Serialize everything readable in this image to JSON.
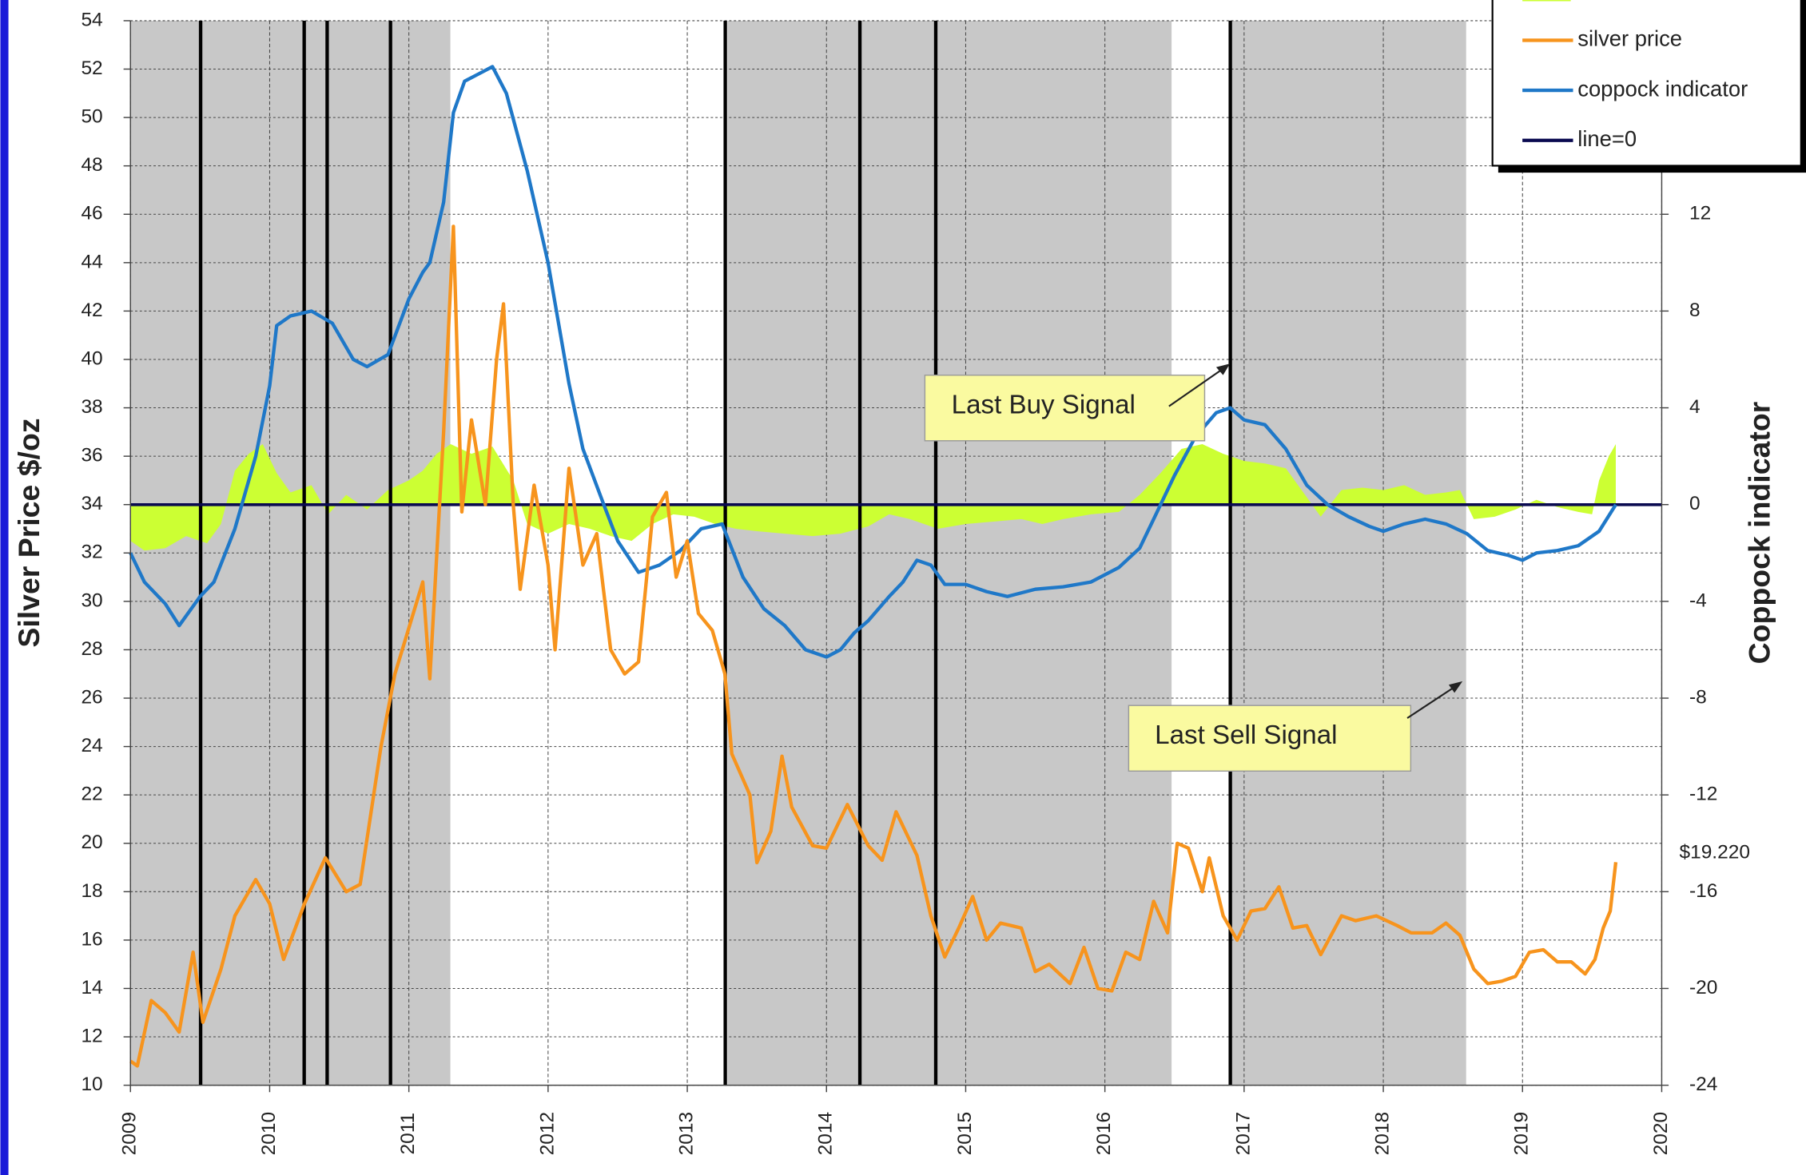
{
  "chart_data": {
    "type": "line",
    "ylabel": "Silver Price $/oz",
    "y2label": "Coppock indicator",
    "xlim": [
      2009,
      2020
    ],
    "xticks": [
      2009,
      2010,
      2011,
      2012,
      2013,
      2014,
      2015,
      2016,
      2017,
      2018,
      2019,
      2020
    ],
    "ylim": [
      10,
      54
    ],
    "yticks": [
      10,
      12,
      14,
      16,
      18,
      20,
      22,
      24,
      26,
      28,
      30,
      32,
      34,
      36,
      38,
      40,
      42,
      44,
      46,
      48,
      50,
      52,
      54
    ],
    "y2lim": [
      -24,
      20
    ],
    "y2ticks": [
      -24,
      -20,
      -16,
      -12,
      -8,
      -4,
      0,
      4,
      8,
      12
    ],
    "grid": true,
    "legend": "top-right",
    "shade_color": "#c8c8c8",
    "shaded_ranges": [
      [
        2009.0,
        2011.298
      ],
      [
        2013.289,
        2016.479
      ],
      [
        2016.901,
        2018.595
      ]
    ],
    "signal_lines": [
      2009.504,
      2010.248,
      2010.413,
      2010.868,
      2013.273,
      2014.24,
      2014.785,
      2016.901
    ],
    "annotations": [
      "Last Buy Signal",
      "Last Sell Signal"
    ],
    "series": [
      {
        "type": "area",
        "color": "#ccff33",
        "axis": "y2",
        "x": [
          2009.0,
          2009.1,
          2009.25,
          2009.4,
          2009.55,
          2009.65,
          2009.75,
          2009.85,
          2009.95,
          2010.05,
          2010.15,
          2010.3,
          2010.42,
          2010.55,
          2010.7,
          2010.85,
          2011.0,
          2011.1,
          2011.2,
          2011.3,
          2011.45,
          2011.6,
          2011.75,
          2011.85,
          2012.0,
          2012.15,
          2012.3,
          2012.45,
          2012.6,
          2012.75,
          2012.9,
          2013.05,
          2013.2,
          2013.35,
          2013.5,
          2013.7,
          2013.9,
          2014.1,
          2014.3,
          2014.45,
          2014.6,
          2014.8,
          2015.0,
          2015.2,
          2015.4,
          2015.55,
          2015.7,
          2015.9,
          2016.1,
          2016.25,
          2016.4,
          2016.55,
          2016.7,
          2016.85,
          2017.0,
          2017.15,
          2017.3,
          2017.45,
          2017.55,
          2017.7,
          2017.85,
          2018.0,
          2018.15,
          2018.3,
          2018.45,
          2018.55,
          2018.65,
          2018.8,
          2018.95,
          2019.1,
          2019.25,
          2019.4,
          2019.5,
          2019.55,
          2019.62,
          2019.67
        ],
        "values": [
          -1.5,
          -1.9,
          -1.8,
          -1.3,
          -1.6,
          -0.8,
          1.4,
          2.1,
          2.5,
          1.3,
          0.5,
          0.8,
          -0.4,
          0.4,
          -0.2,
          0.6,
          1.0,
          1.4,
          2.1,
          2.5,
          2.1,
          2.4,
          1.0,
          -0.8,
          -1.2,
          -0.8,
          -1.0,
          -1.3,
          -1.5,
          -0.8,
          -0.4,
          -0.5,
          -0.8,
          -1.0,
          -1.1,
          -1.2,
          -1.3,
          -1.2,
          -0.9,
          -0.4,
          -0.6,
          -1.0,
          -0.8,
          -0.7,
          -0.6,
          -0.8,
          -0.6,
          -0.4,
          -0.3,
          0.4,
          1.3,
          2.3,
          2.5,
          2.1,
          1.8,
          1.7,
          1.5,
          0.3,
          -0.5,
          0.6,
          0.7,
          0.6,
          0.8,
          0.4,
          0.5,
          0.6,
          -0.6,
          -0.5,
          -0.2,
          0.2,
          -0.1,
          -0.3,
          -0.4,
          1.0,
          2.0,
          2.5
        ]
      },
      {
        "name": "silver price",
        "color": "#f7941d",
        "axis": "y",
        "x": [
          2009.0,
          2009.05,
          2009.15,
          2009.25,
          2009.35,
          2009.45,
          2009.52,
          2009.65,
          2009.75,
          2009.9,
          2010.0,
          2010.1,
          2010.25,
          2010.4,
          2010.55,
          2010.65,
          2010.8,
          2010.9,
          2011.0,
          2011.1,
          2011.15,
          2011.25,
          2011.32,
          2011.38,
          2011.45,
          2011.55,
          2011.63,
          2011.68,
          2011.75,
          2011.8,
          2011.9,
          2012.0,
          2012.05,
          2012.15,
          2012.25,
          2012.35,
          2012.45,
          2012.55,
          2012.65,
          2012.75,
          2012.85,
          2012.92,
          2013.0,
          2013.08,
          2013.18,
          2013.27,
          2013.32,
          2013.45,
          2013.5,
          2013.6,
          2013.68,
          2013.75,
          2013.9,
          2014.0,
          2014.15,
          2014.3,
          2014.4,
          2014.5,
          2014.65,
          2014.75,
          2014.85,
          2014.95,
          2015.05,
          2015.15,
          2015.25,
          2015.4,
          2015.5,
          2015.6,
          2015.75,
          2015.85,
          2015.95,
          2016.05,
          2016.15,
          2016.25,
          2016.35,
          2016.45,
          2016.52,
          2016.6,
          2016.7,
          2016.75,
          2016.85,
          2016.95,
          2017.05,
          2017.15,
          2017.25,
          2017.35,
          2017.45,
          2017.55,
          2017.7,
          2017.8,
          2017.95,
          2018.1,
          2018.2,
          2018.35,
          2018.45,
          2018.55,
          2018.65,
          2018.75,
          2018.85,
          2018.95,
          2019.05,
          2019.15,
          2019.25,
          2019.35,
          2019.45,
          2019.52,
          2019.58,
          2019.63,
          2019.67
        ],
        "values": [
          11.0,
          10.8,
          13.5,
          13.0,
          12.2,
          15.5,
          12.6,
          14.8,
          17.0,
          18.5,
          17.5,
          15.2,
          17.5,
          19.4,
          18.0,
          18.3,
          24.0,
          27.0,
          28.9,
          30.8,
          26.8,
          37.0,
          45.5,
          33.7,
          37.5,
          34.0,
          40.0,
          42.3,
          34.0,
          30.5,
          34.8,
          31.5,
          28.0,
          35.5,
          31.5,
          32.8,
          28.0,
          27.0,
          27.5,
          33.5,
          34.5,
          31.0,
          32.5,
          29.5,
          28.8,
          27.0,
          23.7,
          22.0,
          19.2,
          20.5,
          23.6,
          21.5,
          19.9,
          19.8,
          21.6,
          19.9,
          19.3,
          21.3,
          19.5,
          17.0,
          15.3,
          16.5,
          17.8,
          16.0,
          16.7,
          16.5,
          14.7,
          15.0,
          14.2,
          15.7,
          14.0,
          13.9,
          15.5,
          15.2,
          17.6,
          16.3,
          20.0,
          19.8,
          18.0,
          19.4,
          17.0,
          16.0,
          17.2,
          17.3,
          18.2,
          16.5,
          16.6,
          15.4,
          17.0,
          16.8,
          17.0,
          16.6,
          16.3,
          16.3,
          16.7,
          16.2,
          14.8,
          14.2,
          14.3,
          14.5,
          15.5,
          15.6,
          15.1,
          15.1,
          14.6,
          15.2,
          16.5,
          17.2,
          19.22
        ],
        "value_labels": [
          null,
          null,
          null,
          null,
          null,
          null,
          null,
          null,
          null,
          null,
          null,
          null,
          null,
          null,
          null,
          null,
          null,
          null,
          null,
          null,
          null,
          null,
          null,
          null,
          null,
          null,
          null,
          null,
          null,
          null,
          null,
          null,
          null,
          null,
          null,
          null,
          null,
          null,
          null,
          null,
          null,
          null,
          null,
          null,
          null,
          null,
          null,
          null,
          null,
          null,
          null,
          null,
          null,
          null,
          null,
          null,
          null,
          null,
          null,
          null,
          null,
          null,
          null,
          null,
          null,
          null,
          null,
          null,
          null,
          null,
          null,
          null,
          null,
          null,
          null,
          null,
          null,
          null,
          null,
          null,
          null,
          null,
          null,
          null,
          null,
          null,
          null,
          null,
          null,
          null,
          null,
          null,
          null,
          null,
          null,
          null,
          null,
          null,
          null,
          null,
          null,
          null,
          null,
          null,
          null,
          null,
          null,
          null,
          "$19.220"
        ]
      },
      {
        "name": "coppock indicator",
        "color": "#1f78c8",
        "axis": "y2",
        "x": [
          2009.0,
          2009.1,
          2009.25,
          2009.35,
          2009.5,
          2009.6,
          2009.75,
          2009.9,
          2010.0,
          2010.05,
          2010.15,
          2010.3,
          2010.45,
          2010.6,
          2010.7,
          2010.85,
          2011.0,
          2011.1,
          2011.15,
          2011.25,
          2011.32,
          2011.4,
          2011.5,
          2011.6,
          2011.7,
          2011.85,
          2012.0,
          2012.15,
          2012.25,
          2012.4,
          2012.5,
          2012.65,
          2012.8,
          2012.95,
          2013.1,
          2013.25,
          2013.4,
          2013.55,
          2013.7,
          2013.85,
          2014.0,
          2014.1,
          2014.2,
          2014.3,
          2014.45,
          2014.55,
          2014.65,
          2014.75,
          2014.85,
          2015.0,
          2015.15,
          2015.3,
          2015.5,
          2015.7,
          2015.9,
          2016.1,
          2016.25,
          2016.35,
          2016.5,
          2016.65,
          2016.8,
          2016.9,
          2017.0,
          2017.15,
          2017.3,
          2017.45,
          2017.6,
          2017.75,
          2017.9,
          2018.0,
          2018.15,
          2018.3,
          2018.45,
          2018.6,
          2018.75,
          2018.9,
          2019.0,
          2019.1,
          2019.25,
          2019.4,
          2019.55,
          2019.67
        ],
        "values": [
          -2.0,
          -3.2,
          -4.1,
          -5.0,
          -3.8,
          -3.2,
          -1.0,
          2.0,
          4.9,
          7.4,
          7.8,
          8.0,
          7.5,
          6.0,
          5.7,
          6.2,
          8.5,
          9.6,
          10.0,
          12.5,
          16.2,
          17.5,
          17.8,
          18.1,
          17.0,
          13.8,
          10.0,
          5.0,
          2.3,
          0.0,
          -1.5,
          -2.8,
          -2.5,
          -1.9,
          -1.0,
          -0.8,
          -3.0,
          -4.3,
          -5.0,
          -6.0,
          -6.3,
          -6.0,
          -5.3,
          -4.8,
          -3.8,
          -3.2,
          -2.3,
          -2.5,
          -3.3,
          -3.3,
          -3.6,
          -3.8,
          -3.5,
          -3.4,
          -3.2,
          -2.6,
          -1.8,
          -0.6,
          1.2,
          2.8,
          3.8,
          4.0,
          3.5,
          3.3,
          2.3,
          0.8,
          0.0,
          -0.5,
          -0.9,
          -1.1,
          -0.8,
          -0.6,
          -0.8,
          -1.2,
          -1.9,
          -2.1,
          -2.3,
          -2.0,
          -1.9,
          -1.7,
          -1.1,
          0.0
        ]
      },
      {
        "name": "line=0",
        "color": "#0a0a50",
        "axis": "y2",
        "x": [
          2009,
          2020
        ],
        "values": [
          0,
          0
        ]
      }
    ]
  }
}
